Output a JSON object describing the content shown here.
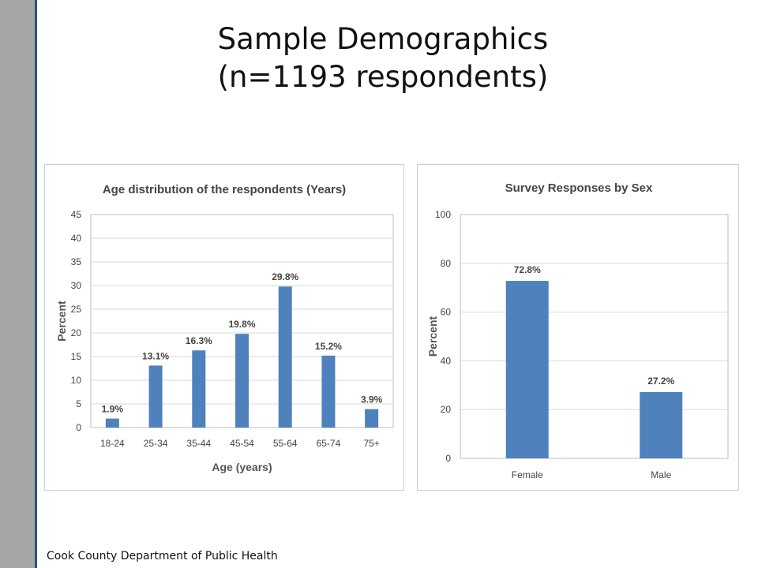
{
  "slide": {
    "title_line1": "Sample Demographics",
    "title_line2": "(n=1193 respondents)",
    "footer": "Cook County Department of Public Health"
  },
  "colors": {
    "bar": "#4f81bd",
    "grid": "#d9d9d9",
    "sidebar": "#a6a6a6",
    "sidebar_edge": "#2f4f7a"
  },
  "chart_data": [
    {
      "type": "bar",
      "title": "Age distribution of the respondents (Years)",
      "xlabel": "Age (years)",
      "ylabel": "Percent",
      "categories": [
        "18-24",
        "25-34",
        "35-44",
        "45-54",
        "55-64",
        "65-74",
        "75+"
      ],
      "values": [
        1.9,
        13.1,
        16.3,
        19.8,
        29.8,
        15.2,
        3.9
      ],
      "data_labels": [
        "1.9%",
        "13.1%",
        "16.3%",
        "19.8%",
        "29.8%",
        "15.2%",
        "3.9%"
      ],
      "ylim": [
        0,
        45
      ],
      "yticks": [
        0,
        5,
        10,
        15,
        20,
        25,
        30,
        35,
        40,
        45
      ],
      "grid": true
    },
    {
      "type": "bar",
      "title": "Survey Responses by Sex",
      "xlabel": "",
      "ylabel": "Percent",
      "categories": [
        "Female",
        "Male"
      ],
      "values": [
        72.8,
        27.2
      ],
      "data_labels": [
        "72.8%",
        "27.2%"
      ],
      "ylim": [
        0,
        100
      ],
      "yticks": [
        0,
        20,
        40,
        60,
        80,
        100
      ],
      "grid": true
    }
  ]
}
